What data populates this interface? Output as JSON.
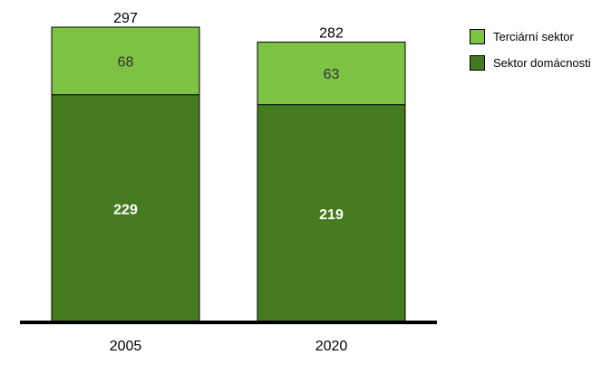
{
  "chart_data": {
    "type": "bar",
    "stacked": true,
    "categories": [
      "2005",
      "2020"
    ],
    "series": [
      {
        "name": "Sektor domácnosti",
        "values": [
          229,
          219
        ],
        "color": "#467a1f"
      },
      {
        "name": "Terciární sektor",
        "values": [
          68,
          63
        ],
        "color": "#7dc243"
      }
    ],
    "totals": [
      297,
      282
    ],
    "title": "",
    "xlabel": "",
    "ylabel": "",
    "ylim": [
      0,
      297
    ],
    "grid": false,
    "legend_position": "top-right"
  },
  "legend": {
    "items": [
      {
        "label": "Terciární sektor",
        "color": "#7dc243"
      },
      {
        "label": "Sektor domácnosti",
        "color": "#467a1f"
      }
    ]
  }
}
